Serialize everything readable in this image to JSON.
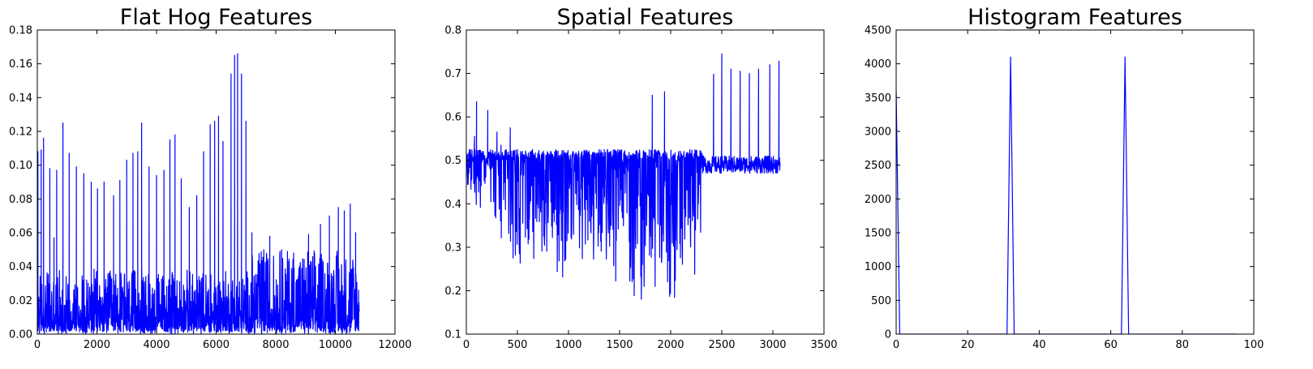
{
  "chart_data": [
    {
      "type": "line",
      "title": "Flat Hog Features",
      "xlabel": "",
      "ylabel": "",
      "xlim": [
        0,
        12000
      ],
      "ylim": [
        0.0,
        0.18
      ],
      "xticks": [
        "0",
        "2000",
        "4000",
        "6000",
        "8000",
        "10000",
        "12000"
      ],
      "yticks": [
        "0.00",
        "0.02",
        "0.04",
        "0.06",
        "0.08",
        "0.10",
        "0.12",
        "0.14",
        "0.16",
        "0.18"
      ],
      "grid": false,
      "legend": "none",
      "color": "#0000ff",
      "data_extent": [
        0,
        10800
      ],
      "peaks": [
        [
          20,
          0.108
        ],
        [
          130,
          0.109
        ],
        [
          210,
          0.116
        ],
        [
          420,
          0.098
        ],
        [
          560,
          0.057
        ],
        [
          650,
          0.097
        ],
        [
          860,
          0.125
        ],
        [
          1070,
          0.107
        ],
        [
          1310,
          0.099
        ],
        [
          1560,
          0.095
        ],
        [
          1810,
          0.09
        ],
        [
          2020,
          0.086
        ],
        [
          2240,
          0.09
        ],
        [
          2560,
          0.082
        ],
        [
          2770,
          0.091
        ],
        [
          3000,
          0.103
        ],
        [
          3210,
          0.107
        ],
        [
          3370,
          0.108
        ],
        [
          3500,
          0.125
        ],
        [
          3750,
          0.099
        ],
        [
          4000,
          0.094
        ],
        [
          4250,
          0.097
        ],
        [
          4450,
          0.115
        ],
        [
          4620,
          0.118
        ],
        [
          4830,
          0.092
        ],
        [
          5100,
          0.075
        ],
        [
          5350,
          0.082
        ],
        [
          5580,
          0.108
        ],
        [
          5800,
          0.124
        ],
        [
          5950,
          0.126
        ],
        [
          6080,
          0.129
        ],
        [
          6230,
          0.114
        ],
        [
          6500,
          0.154
        ],
        [
          6620,
          0.165
        ],
        [
          6720,
          0.166
        ],
        [
          6850,
          0.154
        ],
        [
          7000,
          0.126
        ],
        [
          7200,
          0.06
        ],
        [
          7600,
          0.05
        ],
        [
          7800,
          0.058
        ],
        [
          8200,
          0.05
        ],
        [
          8600,
          0.048
        ],
        [
          9100,
          0.059
        ],
        [
          9500,
          0.065
        ],
        [
          9800,
          0.07
        ],
        [
          10100,
          0.075
        ],
        [
          10300,
          0.073
        ],
        [
          10500,
          0.077
        ],
        [
          10680,
          0.06
        ],
        [
          10780,
          0.026
        ]
      ]
    },
    {
      "type": "line",
      "title": "Spatial Features",
      "xlabel": "",
      "ylabel": "",
      "xlim": [
        0,
        3500
      ],
      "ylim": [
        0.1,
        0.8
      ],
      "xticks": [
        "0",
        "500",
        "1000",
        "1500",
        "2000",
        "2500",
        "3000",
        "3500"
      ],
      "yticks": [
        "0.1",
        "0.2",
        "0.3",
        "0.4",
        "0.5",
        "0.6",
        "0.7",
        "0.8"
      ],
      "grid": false,
      "legend": "none",
      "color": "#0000ff",
      "data_extent": [
        0,
        3072
      ],
      "low_band": [
        [
          0,
          0.43
        ],
        [
          100,
          0.36
        ],
        [
          200,
          0.38
        ],
        [
          300,
          0.32
        ],
        [
          400,
          0.28
        ],
        [
          500,
          0.25
        ],
        [
          600,
          0.27
        ],
        [
          700,
          0.25
        ],
        [
          800,
          0.24
        ],
        [
          900,
          0.21
        ],
        [
          1000,
          0.2
        ],
        [
          1100,
          0.22
        ],
        [
          1200,
          0.22
        ],
        [
          1300,
          0.2
        ],
        [
          1400,
          0.19
        ],
        [
          1500,
          0.19
        ],
        [
          1600,
          0.18
        ],
        [
          1700,
          0.17
        ],
        [
          1800,
          0.17
        ],
        [
          1900,
          0.18
        ],
        [
          2000,
          0.15
        ],
        [
          2100,
          0.16
        ],
        [
          2200,
          0.18
        ],
        [
          2300,
          0.33
        ],
        [
          2310,
          0.47
        ],
        [
          3072,
          0.47
        ]
      ],
      "spikes": [
        [
          80,
          0.555
        ],
        [
          100,
          0.635
        ],
        [
          210,
          0.615
        ],
        [
          300,
          0.565
        ],
        [
          340,
          0.535
        ],
        [
          430,
          0.575
        ],
        [
          500,
          0.525
        ],
        [
          1820,
          0.65
        ],
        [
          1940,
          0.658
        ],
        [
          2420,
          0.698
        ],
        [
          2500,
          0.745
        ],
        [
          2590,
          0.71
        ],
        [
          2680,
          0.705
        ],
        [
          2770,
          0.7
        ],
        [
          2860,
          0.71
        ],
        [
          2970,
          0.72
        ],
        [
          3060,
          0.728
        ]
      ]
    },
    {
      "type": "line",
      "title": "Histogram Features",
      "xlabel": "",
      "ylabel": "",
      "xlim": [
        0,
        100
      ],
      "ylim": [
        0,
        4500
      ],
      "xticks": [
        "0",
        "20",
        "40",
        "60",
        "80",
        "100"
      ],
      "yticks": [
        "0",
        "500",
        "1000",
        "1500",
        "2000",
        "2500",
        "3000",
        "3500",
        "4000",
        "4500"
      ],
      "grid": false,
      "legend": "none",
      "color": "#0000ff",
      "x": [
        0,
        1,
        2,
        30,
        31,
        32,
        33,
        34,
        62,
        63,
        64,
        65,
        66,
        95
      ],
      "y": [
        3600,
        0,
        0,
        0,
        0,
        4100,
        0,
        0,
        0,
        0,
        4100,
        0,
        0,
        0
      ]
    }
  ]
}
